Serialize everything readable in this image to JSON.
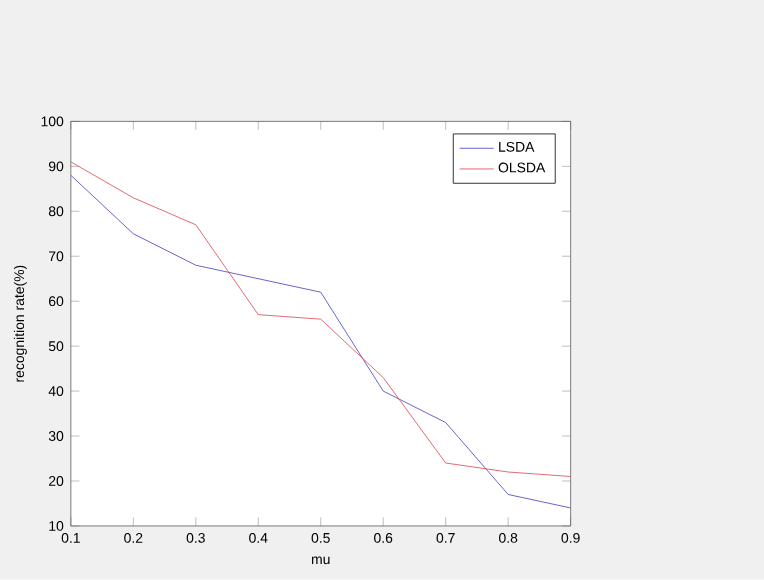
{
  "chart_data": {
    "type": "line",
    "xlabel": "mu",
    "ylabel": "recognition rate(%)",
    "x": [
      0.1,
      0.2,
      0.3,
      0.4,
      0.5,
      0.6,
      0.7,
      0.8,
      0.9
    ],
    "series": [
      {
        "name": "LSDA",
        "color": "#3f3fbf",
        "values": [
          88,
          75,
          68,
          65,
          62,
          40,
          33,
          17,
          14
        ]
      },
      {
        "name": "OLSDA",
        "color": "#d9454c",
        "values": [
          91,
          83,
          77,
          57,
          56,
          43,
          24,
          22,
          21
        ]
      }
    ],
    "xlim": [
      0.1,
      0.9
    ],
    "xticks": [
      0.1,
      0.2,
      0.3,
      0.4,
      0.5,
      0.6,
      0.7,
      0.8,
      0.9
    ],
    "ylim": [
      10,
      100
    ],
    "yticks": [
      10,
      20,
      30,
      40,
      50,
      60,
      70,
      80,
      90,
      100
    ],
    "legend": "top right",
    "grid": false,
    "marker": "none",
    "line_style": "solid"
  }
}
